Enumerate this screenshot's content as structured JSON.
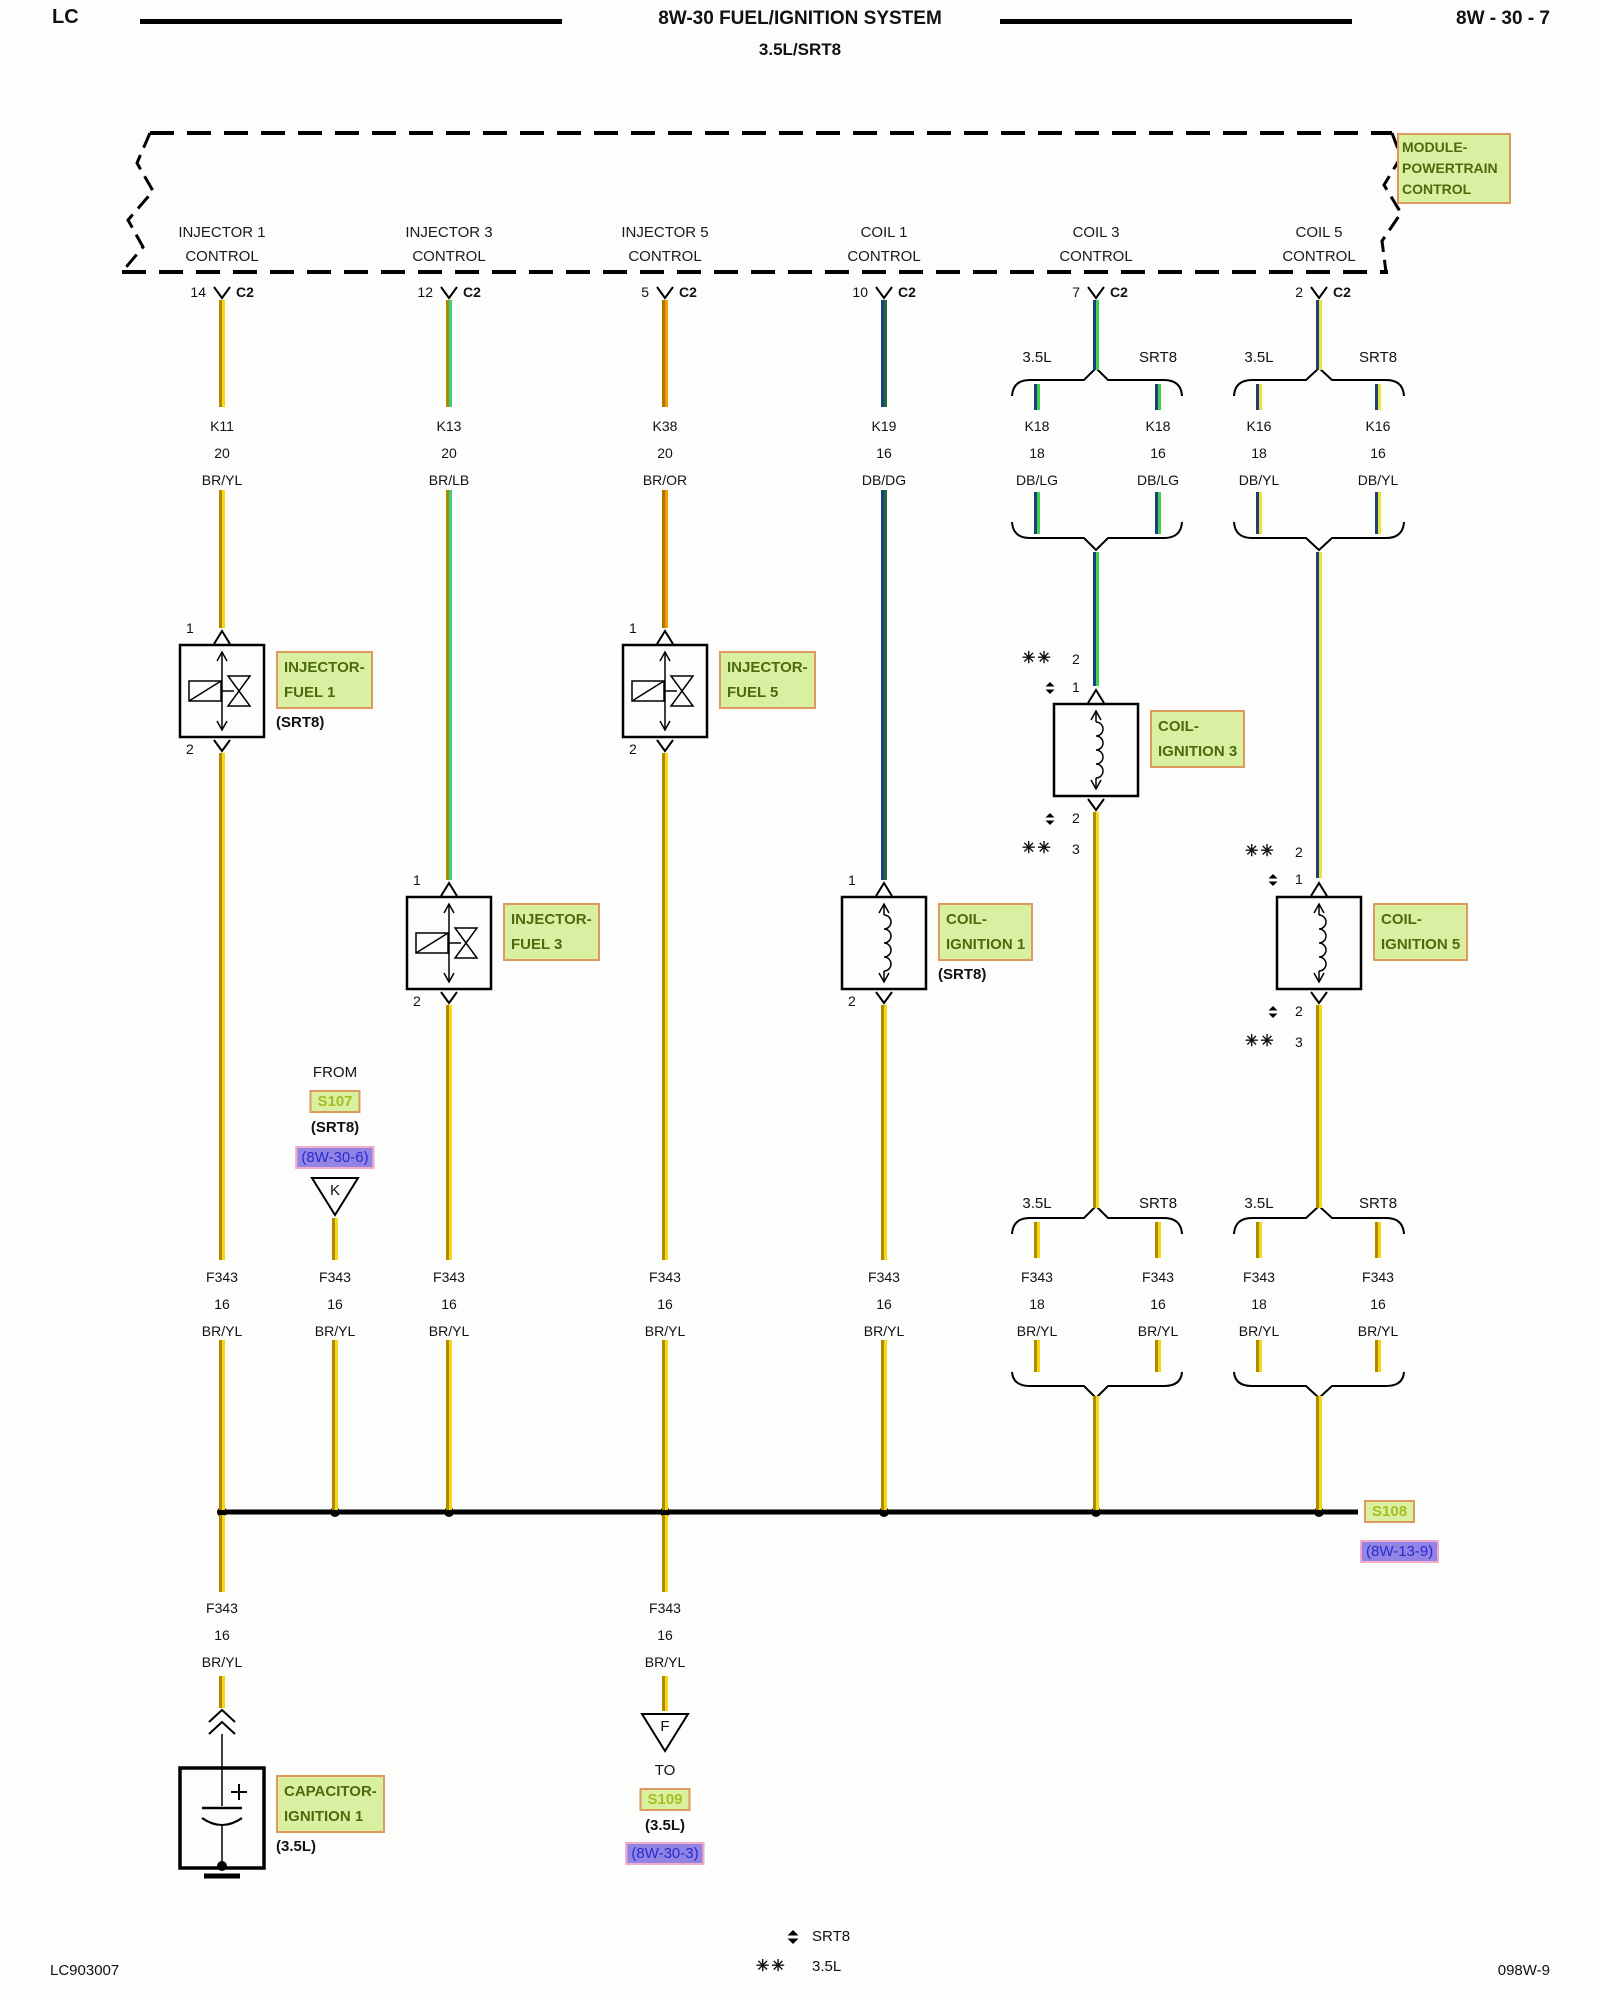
{
  "page": {
    "code": "LC",
    "title": "8W-30 FUEL/IGNITION SYSTEM",
    "subtitle": "3.5L/SRT8",
    "page_ref": "8W - 30 - 7",
    "footer_left": "LC903007",
    "footer_right": "098W-9"
  },
  "pcm": {
    "label": [
      "MODULE-",
      "POWERTRAIN",
      "CONTROL"
    ],
    "connectors": [
      {
        "line1": "INJECTOR 1",
        "line2": "CONTROL",
        "pin": "14",
        "conn": "C2"
      },
      {
        "line1": "INJECTOR 3",
        "line2": "CONTROL",
        "pin": "12",
        "conn": "C2"
      },
      {
        "line1": "INJECTOR 5",
        "line2": "CONTROL",
        "pin": "5",
        "conn": "C2"
      },
      {
        "line1": "COIL 1",
        "line2": "CONTROL",
        "pin": "10",
        "conn": "C2"
      },
      {
        "line1": "COIL 3",
        "line2": "CONTROL",
        "pin": "7",
        "conn": "C2"
      },
      {
        "line1": "COIL 5",
        "line2": "CONTROL",
        "pin": "2",
        "conn": "C2"
      }
    ]
  },
  "splits": {
    "eng": "3.5L",
    "srt": "SRT8"
  },
  "specs_top": [
    {
      "circuit": "K11",
      "gauge": "20",
      "color": "BR/YL"
    },
    {
      "circuit": "K13",
      "gauge": "20",
      "color": "BR/LB"
    },
    {
      "circuit": "K38",
      "gauge": "20",
      "color": "BR/OR"
    },
    {
      "circuit": "K19",
      "gauge": "16",
      "color": "DB/DG"
    },
    {
      "circuit": "K18",
      "gauge": "18",
      "color": "DB/LG"
    },
    {
      "circuit": "K18",
      "gauge": "16",
      "color": "DB/LG"
    },
    {
      "circuit": "K16",
      "gauge": "18",
      "color": "DB/YL"
    },
    {
      "circuit": "K16",
      "gauge": "16",
      "color": "DB/YL"
    }
  ],
  "specs_mid": [
    {
      "circuit": "F343",
      "gauge": "16",
      "color": "BR/YL"
    },
    {
      "circuit": "F343",
      "gauge": "16",
      "color": "BR/YL"
    },
    {
      "circuit": "F343",
      "gauge": "16",
      "color": "BR/YL"
    },
    {
      "circuit": "F343",
      "gauge": "16",
      "color": "BR/YL"
    },
    {
      "circuit": "F343",
      "gauge": "16",
      "color": "BR/YL"
    },
    {
      "circuit": "F343",
      "gauge": "18",
      "color": "BR/YL"
    },
    {
      "circuit": "F343",
      "gauge": "16",
      "color": "BR/YL"
    },
    {
      "circuit": "F343",
      "gauge": "18",
      "color": "BR/YL"
    },
    {
      "circuit": "F343",
      "gauge": "16",
      "color": "BR/YL"
    }
  ],
  "specs_bot": [
    {
      "circuit": "F343",
      "gauge": "16",
      "color": "BR/YL"
    },
    {
      "circuit": "F343",
      "gauge": "16",
      "color": "BR/YL"
    }
  ],
  "components": {
    "inj1": {
      "label1": "INJECTOR-",
      "label2": "FUEL 1",
      "note": "(SRT8)",
      "pin_top": "1",
      "pin_bottom": "2"
    },
    "inj3": {
      "label1": "INJECTOR-",
      "label2": "FUEL 3",
      "pin_top": "1",
      "pin_bottom": "2"
    },
    "inj5": {
      "label1": "INJECTOR-",
      "label2": "FUEL 5",
      "pin_top": "1",
      "pin_bottom": "2"
    },
    "coil1": {
      "label1": "COIL-",
      "label2": "IGNITION 1",
      "note": "(SRT8)",
      "pin_top": "1",
      "pin_bottom": "2"
    },
    "coil3": {
      "label1": "COIL-",
      "label2": "IGNITION 3",
      "pins_top": [
        {
          "marker": "✳✳",
          "pin": "2"
        },
        {
          "marker": "◆",
          "pin": "1"
        }
      ],
      "pins_bottom": [
        {
          "marker": "◆",
          "pin": "2"
        },
        {
          "marker": "✳✳",
          "pin": "3"
        }
      ]
    },
    "coil5": {
      "label1": "COIL-",
      "label2": "IGNITION 5",
      "pins_top": [
        {
          "marker": "✳✳",
          "pin": "2"
        },
        {
          "marker": "◆",
          "pin": "1"
        }
      ],
      "pins_bottom": [
        {
          "marker": "◆",
          "pin": "2"
        },
        {
          "marker": "✳✳",
          "pin": "3"
        }
      ]
    },
    "cap": {
      "label1": "CAPACITOR-",
      "label2": "IGNITION 1",
      "note": "(3.5L)"
    }
  },
  "s107": {
    "from": "FROM",
    "name": "S107",
    "note": "(SRT8)",
    "ref": "(8W-30-6)",
    "letter": "K"
  },
  "s108": {
    "name": "S108",
    "ref": "(8W-13-9)"
  },
  "s109": {
    "to": "TO",
    "name": "S109",
    "note": "(3.5L)",
    "ref": "(8W-30-3)",
    "letter": "F"
  },
  "legend": {
    "marker": "✳✳",
    "srt8": "SRT8",
    "eng": "3.5L"
  },
  "colors": {
    "ui": {
      "green_bg": "#d9f0a3",
      "green_border": "#dd9a5e",
      "green_text": "#4c6b0b",
      "splice_text": "#a8bc20",
      "purple_bg": "#9184e4",
      "purple_border": "#f2aacb",
      "purple_text": "#2a2ace",
      "ink": "#111111"
    },
    "wires": {
      "BR/YL": [
        "#b08900",
        "#f5d916"
      ],
      "BR/LB": [
        "#b08900",
        "#3ecb82"
      ],
      "BR/OR": [
        "#a87800",
        "#f59a00"
      ],
      "DB/DG": [
        "#1c3f7d",
        "#1e6b3c"
      ],
      "DB/LG": [
        "#1c3f7d",
        "#3ed24f"
      ],
      "DB/YL": [
        "#1c3f7d",
        "#f0e03a"
      ]
    }
  }
}
